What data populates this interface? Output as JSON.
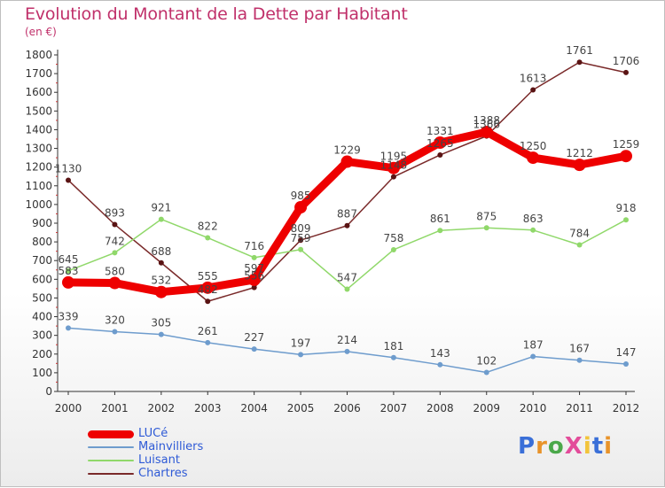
{
  "title": "Evolution du Montant de la Dette par Habitant",
  "subtitle": "(en €)",
  "brand": {
    "text": "ProXiti",
    "colors": [
      "#3a6fd8",
      "#e8932a",
      "#4aa84a",
      "#e34c9a",
      "#f2c43a",
      "#3a6fd8",
      "#e8932a"
    ]
  },
  "chart_data": {
    "type": "line",
    "title": "Evolution du Montant de la Dette par Habitant",
    "subtitle": "(en €)",
    "xlabel": "",
    "ylabel": "",
    "x": [
      "2000",
      "2001",
      "2002",
      "2003",
      "2004",
      "2005",
      "2006",
      "2007",
      "2008",
      "2009",
      "2010",
      "2011",
      "2012"
    ],
    "ylim": [
      0,
      1800
    ],
    "yticks": [
      0,
      100,
      200,
      300,
      400,
      500,
      600,
      700,
      800,
      900,
      1000,
      1100,
      1200,
      1300,
      1400,
      1500,
      1600,
      1700,
      1800
    ],
    "grid": false,
    "legend_position": "bottom-left",
    "series": [
      {
        "name": "LUCé",
        "color": "#ee0000",
        "width": 9,
        "marker": 7,
        "values": [
          583,
          580,
          532,
          555,
          597,
          985,
          1229,
          1195,
          1331,
          1388,
          1250,
          1212,
          1259
        ],
        "labels": [
          "583",
          "580",
          "532",
          "555",
          "597",
          "985",
          "1229",
          "1195",
          "1331",
          "1388",
          "1250",
          "1212",
          "1259"
        ]
      },
      {
        "name": "Mainvilliers",
        "color": "#6e9ccd",
        "width": 1.5,
        "marker": 3,
        "values": [
          339,
          320,
          305,
          261,
          227,
          197,
          214,
          181,
          143,
          102,
          187,
          167,
          147
        ],
        "labels": [
          "339",
          "320",
          "305",
          "261",
          "227",
          "197",
          "214",
          "181",
          "143",
          "102",
          "187",
          "167",
          "147"
        ]
      },
      {
        "name": "Luisant",
        "color": "#90d86a",
        "width": 1.5,
        "marker": 3,
        "values": [
          645,
          742,
          921,
          822,
          716,
          759,
          547,
          758,
          861,
          875,
          863,
          784,
          918
        ],
        "labels": [
          "645",
          "742",
          "921",
          "822",
          "716",
          "759",
          "547",
          "758",
          "861",
          "875",
          "863",
          "784",
          "918"
        ]
      },
      {
        "name": "Chartres",
        "color": "#7a2a2a",
        "width": 1.5,
        "marker": 3,
        "values": [
          1130,
          893,
          688,
          482,
          556,
          809,
          887,
          1148,
          1265,
          1366,
          1613,
          1761,
          1706
        ],
        "labels": [
          "1130",
          "893",
          "688",
          "482",
          "556",
          "809",
          "887",
          "1148",
          "1265",
          "1366",
          "1613",
          "1761",
          "1706"
        ]
      }
    ]
  }
}
